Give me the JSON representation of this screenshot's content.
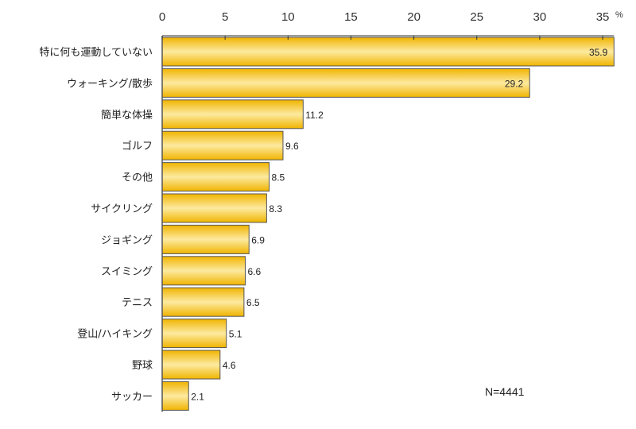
{
  "chart_data": {
    "type": "bar",
    "orientation": "horizontal",
    "categories": [
      "特に何も運動していない",
      "ウォーキング/散歩",
      "簡単な体操",
      "ゴルフ",
      "その他",
      "サイクリング",
      "ジョギング",
      "スイミング",
      "テニス",
      "登山/ハイキング",
      "野球",
      "サッカー"
    ],
    "values": [
      35.9,
      29.2,
      11.2,
      9.6,
      8.5,
      8.3,
      6.9,
      6.6,
      6.5,
      5.1,
      4.6,
      2.1
    ],
    "xlim": [
      0,
      35.9
    ],
    "xticks": [
      0,
      5,
      10,
      15,
      20,
      25,
      30,
      35
    ],
    "unit_label": "%",
    "annotation": "N=4441",
    "grid": false,
    "axis_position": "top",
    "colors": {
      "bar_edge": "#f0b400",
      "bar_mid": "#fdeaa0",
      "bar_border": "#555555"
    }
  }
}
